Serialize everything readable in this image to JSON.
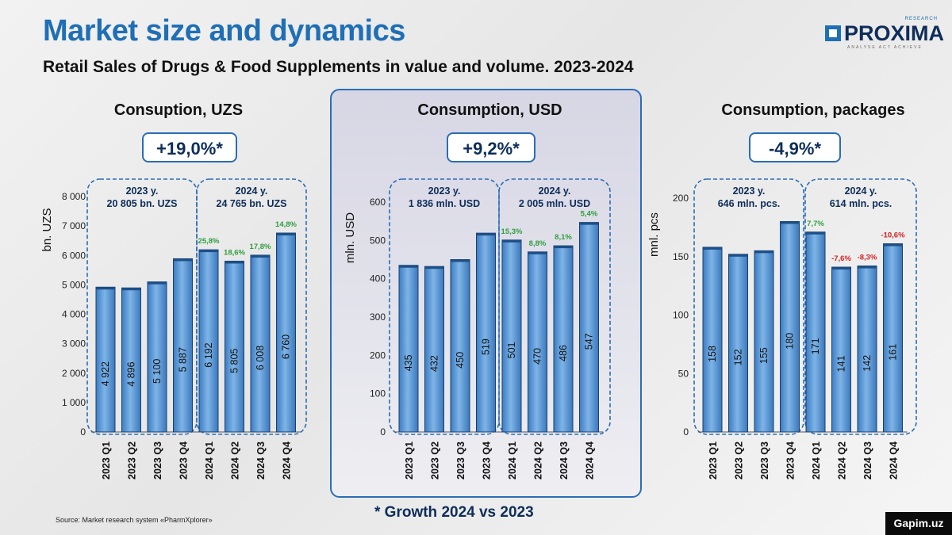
{
  "header": {
    "title": "Market size and dynamics",
    "subtitle": "Retail Sales of Drugs & Food Supplements in value and volume. 2023-2024"
  },
  "logo": {
    "name": "PROXIMA",
    "research": "RESEARCH",
    "tagline": "ANALYSE ACT ACHIEVE"
  },
  "footer": {
    "source": "Source: Market research system «PharmXplorer»",
    "growth_note": "* Growth 2024 vs  2023",
    "watermark": "Gapim.uz"
  },
  "colors": {
    "accent": "#1f6fb5",
    "bar": "#5b9bd5",
    "positive": "#2e9e3e",
    "negative": "#d42020",
    "frame": "#2a6db5"
  },
  "chart_data": [
    {
      "type": "bar",
      "title": "Consuption, UZS",
      "growth": "+19,0%*",
      "ylabel": "bn. UZS",
      "ylim": [
        0,
        8000
      ],
      "yticks": [
        0,
        1000,
        2000,
        3000,
        4000,
        5000,
        6000,
        7000,
        8000
      ],
      "ytick_labels": [
        "0",
        "1 000",
        "2 000",
        "3 000",
        "4 000",
        "5 000",
        "6 000",
        "7 000",
        "8 000"
      ],
      "categories": [
        "2023 Q1",
        "2023 Q2",
        "2023 Q3",
        "2023 Q4",
        "2024 Q1",
        "2024 Q2",
        "2024 Q3",
        "2024 Q4"
      ],
      "values": [
        4922,
        4896,
        5100,
        5887,
        6192,
        5805,
        6008,
        6760
      ],
      "value_labels": [
        "4 922",
        "4 896",
        "5 100",
        "5 887",
        "6 192",
        "5 805",
        "6 008",
        "6 760"
      ],
      "yoy_labels": [
        "",
        "",
        "",
        "",
        "25,8%",
        "18,6%",
        "17,8%",
        "14,8%"
      ],
      "year_totals": [
        {
          "year": "2023 y.",
          "total": "20 805 bn. UZS"
        },
        {
          "year": "2024 y.",
          "total": "24 765 bn. UZS"
        }
      ]
    },
    {
      "type": "bar",
      "title": "Consumption, USD",
      "growth": "+9,2%*",
      "ylabel": "mln. USD",
      "ylim": [
        0,
        600
      ],
      "yticks": [
        0,
        100,
        200,
        300,
        400,
        500,
        600
      ],
      "ytick_labels": [
        "0",
        "100",
        "200",
        "300",
        "400",
        "500",
        "600"
      ],
      "categories": [
        "2023 Q1",
        "2023 Q2",
        "2023 Q3",
        "2023 Q4",
        "2024 Q1",
        "2024 Q2",
        "2024 Q3",
        "2024 Q4"
      ],
      "values": [
        435,
        432,
        450,
        519,
        501,
        470,
        486,
        547
      ],
      "value_labels": [
        "435",
        "432",
        "450",
        "519",
        "501",
        "470",
        "486",
        "547"
      ],
      "yoy_labels": [
        "",
        "",
        "",
        "",
        "15,3%",
        "8,8%",
        "8,1%",
        "5,4%"
      ],
      "year_totals": [
        {
          "year": "2023 y.",
          "total": "1 836 mln. USD"
        },
        {
          "year": "2024 y.",
          "total": "2 005 mln. USD"
        }
      ]
    },
    {
      "type": "bar",
      "title": "Consumption, packages",
      "growth": "-4,9%*",
      "ylabel": "mnl. pcs",
      "ylim": [
        0,
        200
      ],
      "yticks": [
        0,
        50,
        100,
        150,
        200
      ],
      "ytick_labels": [
        "0",
        "50",
        "100",
        "150",
        "200"
      ],
      "categories": [
        "2023 Q1",
        "2023 Q2",
        "2023 Q3",
        "2023 Q4",
        "2024 Q1",
        "2024 Q2",
        "2024 Q3",
        "2024 Q4"
      ],
      "values": [
        158,
        152,
        155,
        180,
        171,
        141,
        142,
        161
      ],
      "value_labels": [
        "158",
        "152",
        "155",
        "180",
        "171",
        "141",
        "142",
        "161"
      ],
      "yoy_labels": [
        "",
        "",
        "",
        "",
        "7,7%",
        "-7,6%",
        "-8,3%",
        "-10,6%"
      ],
      "year_totals": [
        {
          "year": "2023 y.",
          "total": "646 mln. pcs."
        },
        {
          "year": "2024 y.",
          "total": "614 mln. pcs."
        }
      ]
    }
  ]
}
